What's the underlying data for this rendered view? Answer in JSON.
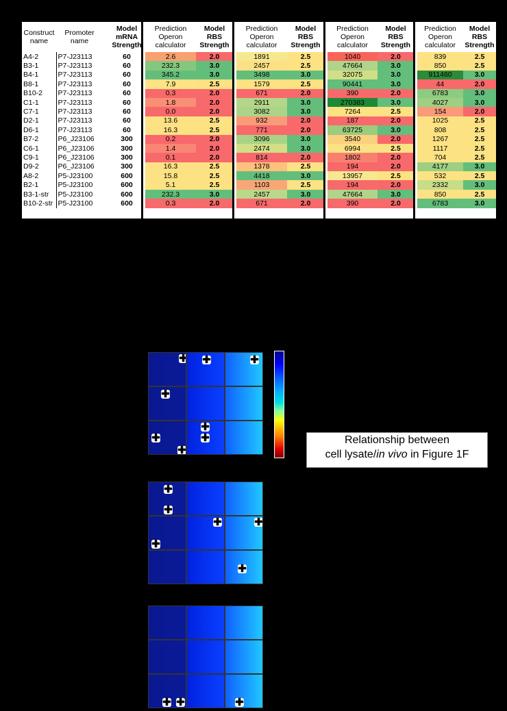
{
  "table": {
    "construct_header": "Construct name",
    "promoter_header": "Promoter name",
    "model_mrna_header": [
      "Model",
      "mRNA",
      "Strength"
    ],
    "pred_header": [
      "Prediction",
      "Operon",
      "calculator"
    ],
    "rbs_header": [
      "Model",
      "RBS",
      "Strength"
    ],
    "rows": [
      {
        "construct": "A4-2",
        "promoter": "P7-J23113",
        "mrna": "60",
        "g": [
          [
            "2.6",
            "2.0"
          ],
          [
            "1891",
            "2.5"
          ],
          [
            "1040",
            "2.0"
          ],
          [
            "839",
            "2.5"
          ]
        ]
      },
      {
        "construct": "B3-1",
        "promoter": "P7-J23113",
        "mrna": "60",
        "g": [
          [
            "232.3",
            "3.0"
          ],
          [
            "2457",
            "2.5"
          ],
          [
            "47664",
            "3.0"
          ],
          [
            "850",
            "2.5"
          ]
        ]
      },
      {
        "construct": "B4-1",
        "promoter": "P7-J23113",
        "mrna": "60",
        "g": [
          [
            "345.2",
            "3.0"
          ],
          [
            "3498",
            "3.0"
          ],
          [
            "32075",
            "3.0"
          ],
          [
            "911460",
            "3.0"
          ]
        ]
      },
      {
        "construct": "B8-1",
        "promoter": "P7-J23113",
        "mrna": "60",
        "g": [
          [
            "7.9",
            "2.5"
          ],
          [
            "1579",
            "2.5"
          ],
          [
            "90441",
            "3.0"
          ],
          [
            "44",
            "2.0"
          ]
        ]
      },
      {
        "construct": "B10-2",
        "promoter": "P7-J23113",
        "mrna": "60",
        "g": [
          [
            "0.3",
            "2.0"
          ],
          [
            "671",
            "2.0"
          ],
          [
            "390",
            "2.0"
          ],
          [
            "6783",
            "3.0"
          ]
        ]
      },
      {
        "construct": "C1-1",
        "promoter": "P7-J23113",
        "mrna": "60",
        "g": [
          [
            "1.8",
            "2.0"
          ],
          [
            "2911",
            "3.0"
          ],
          [
            "270383",
            "3.0"
          ],
          [
            "4027",
            "3.0"
          ]
        ]
      },
      {
        "construct": "C7-1",
        "promoter": "P7-J23113",
        "mrna": "60",
        "g": [
          [
            "0.0",
            "2.0"
          ],
          [
            "3082",
            "3.0"
          ],
          [
            "7264",
            "2.5"
          ],
          [
            "154",
            "2.0"
          ]
        ]
      },
      {
        "construct": "D2-1",
        "promoter": "P7-J23113",
        "mrna": "60",
        "g": [
          [
            "13.6",
            "2.5"
          ],
          [
            "932",
            "2.0"
          ],
          [
            "187",
            "2.0"
          ],
          [
            "1025",
            "2.5"
          ]
        ]
      },
      {
        "construct": "D6-1",
        "promoter": "P7-J23113",
        "mrna": "60",
        "g": [
          [
            "16.3",
            "2.5"
          ],
          [
            "771",
            "2.0"
          ],
          [
            "63725",
            "3.0"
          ],
          [
            "808",
            "2.5"
          ]
        ]
      },
      {
        "construct": "B7-2",
        "promoter": "P6_J23106",
        "mrna": "300",
        "g": [
          [
            "0.2",
            "2.0"
          ],
          [
            "3096",
            "3.0"
          ],
          [
            "3540",
            "2.0"
          ],
          [
            "1267",
            "2.5"
          ]
        ]
      },
      {
        "construct": "C6-1",
        "promoter": "P6_J23106",
        "mrna": "300",
        "g": [
          [
            "1.4",
            "2.0"
          ],
          [
            "2474",
            "3.0"
          ],
          [
            "6994",
            "2.5"
          ],
          [
            "1117",
            "2.5"
          ]
        ]
      },
      {
        "construct": "C9-1",
        "promoter": "P6_J23106",
        "mrna": "300",
        "g": [
          [
            "0.1",
            "2.0"
          ],
          [
            "814",
            "2.0"
          ],
          [
            "1802",
            "2.0"
          ],
          [
            "704",
            "2.5"
          ]
        ]
      },
      {
        "construct": "D9-2",
        "promoter": "P6_J23106",
        "mrna": "300",
        "g": [
          [
            "16.3",
            "2.5"
          ],
          [
            "1378",
            "2.5"
          ],
          [
            "194",
            "2.0"
          ],
          [
            "4177",
            "3.0"
          ]
        ]
      },
      {
        "construct": "A8-2",
        "promoter": "P5-J23100",
        "mrna": "600",
        "g": [
          [
            "15.8",
            "2.5"
          ],
          [
            "4418",
            "3.0"
          ],
          [
            "13957",
            "2.5"
          ],
          [
            "532",
            "2.5"
          ]
        ]
      },
      {
        "construct": "B2-1",
        "promoter": "P5-J23100",
        "mrna": "600",
        "g": [
          [
            "5.1",
            "2.5"
          ],
          [
            "1103",
            "2.5"
          ],
          [
            "194",
            "2.0"
          ],
          [
            "2332",
            "3.0"
          ]
        ]
      },
      {
        "construct": "B3-1-str",
        "promoter": "P5-J23100",
        "mrna": "600",
        "g": [
          [
            "232.3",
            "3.0"
          ],
          [
            "2457",
            "3.0"
          ],
          [
            "47664",
            "3.0"
          ],
          [
            "850",
            "2.5"
          ]
        ]
      },
      {
        "construct": "B10-2-str",
        "promoter": "P5-J23100",
        "mrna": "600",
        "g": [
          [
            "0.3",
            "2.0"
          ],
          [
            "671",
            "2.0"
          ],
          [
            "390",
            "2.0"
          ],
          [
            "6783",
            "3.0"
          ]
        ]
      }
    ],
    "pred_colors": [
      [
        "#f8a070",
        "#f6e890",
        "#f8645a",
        "#fde283"
      ],
      [
        "#85c77f",
        "#fce086",
        "#b0d48a",
        "#fde283"
      ],
      [
        "#63be7b",
        "#63be7b",
        "#d0de88",
        "#2c8a3a"
      ],
      [
        "#fce384",
        "#fde283",
        "#63be7b",
        "#f8696b"
      ],
      [
        "#f8696b",
        "#f8696b",
        "#f8696b",
        "#8dcb81"
      ],
      [
        "#f98f75",
        "#b4d68a",
        "#1f8a35",
        "#9dd083"
      ],
      [
        "#f8696b",
        "#acd486",
        "#fde283",
        "#fa9a78"
      ],
      [
        "#fde283",
        "#f99b78",
        "#f8696b",
        "#fde283"
      ],
      [
        "#fde283",
        "#f8696b",
        "#9ccc7e",
        "#fde283"
      ],
      [
        "#f8696b",
        "#a8d385",
        "#fbd07f",
        "#fde283"
      ],
      [
        "#f98575",
        "#d2df87",
        "#fde283",
        "#fde283"
      ],
      [
        "#f8696b",
        "#f8696b",
        "#f8806f",
        "#fde283"
      ],
      [
        "#fde283",
        "#fbc17d",
        "#f8696b",
        "#9dcf82"
      ],
      [
        "#fde283",
        "#63be7b",
        "#f6e890",
        "#fde283"
      ],
      [
        "#fde283",
        "#f9a677",
        "#f8696b",
        "#c7dd88"
      ],
      [
        "#63be7b",
        "#b9d88a",
        "#b0d48a",
        "#fde283"
      ],
      [
        "#f8696b",
        "#f8696b",
        "#f8696b",
        "#63be7b"
      ]
    ],
    "rbs_colors": {
      "2.0": "#f8696b",
      "2.5": "#fde283",
      "3.0": "#63be7b"
    }
  },
  "title_box": {
    "line1": "Relationship between",
    "line2a": "cell lysate/",
    "line2b": "in vivo",
    "line2c": " in Figure 1F"
  },
  "plus_glyph": "✚"
}
